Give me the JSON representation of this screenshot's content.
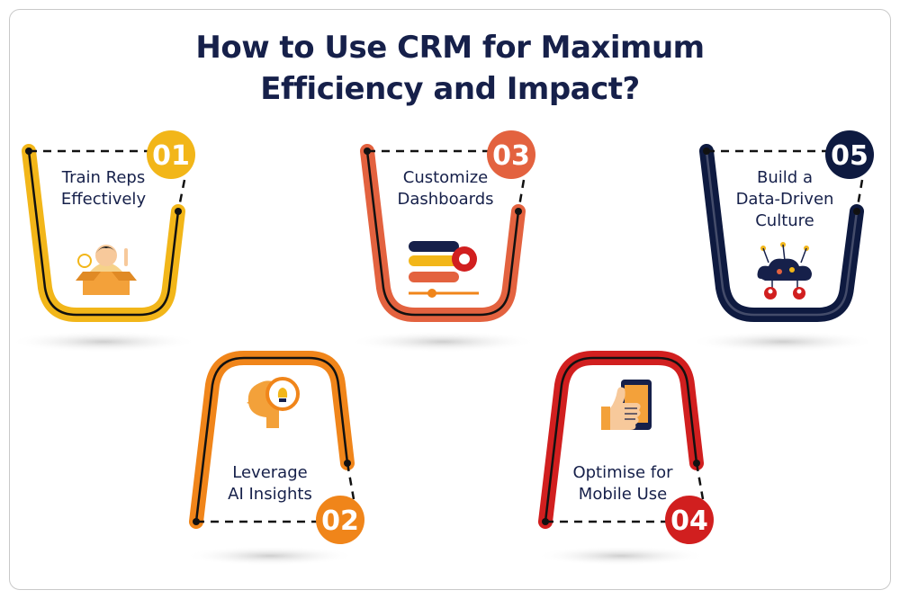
{
  "title": {
    "line1": "How to Use CRM for Maximum",
    "line2": "Efficiency and Impact?"
  },
  "colors": {
    "navy": "#16204a",
    "yellow": "#f2b619",
    "orange": "#f0851a",
    "coral": "#e3623f",
    "red": "#d11f1f",
    "dark_navy": "#0e1a40"
  },
  "steps": [
    {
      "number": "01",
      "label_line1": "Train Reps",
      "label_line2": "Effectively",
      "label_line3": "",
      "icon": "trainer-icon"
    },
    {
      "number": "02",
      "label_line1": "Leverage",
      "label_line2": "AI Insights",
      "label_line3": "",
      "icon": "ai-head-icon"
    },
    {
      "number": "03",
      "label_line1": "Customize",
      "label_line2": "Dashboards",
      "label_line3": "",
      "icon": "dashboard-icon"
    },
    {
      "number": "04",
      "label_line1": "Optimise for",
      "label_line2": "Mobile Use",
      "label_line3": "",
      "icon": "mobile-thumbs-up-icon"
    },
    {
      "number": "05",
      "label_line1": "Build a",
      "label_line2": "Data-Driven",
      "label_line3": "Culture",
      "icon": "data-cloud-icon"
    }
  ]
}
